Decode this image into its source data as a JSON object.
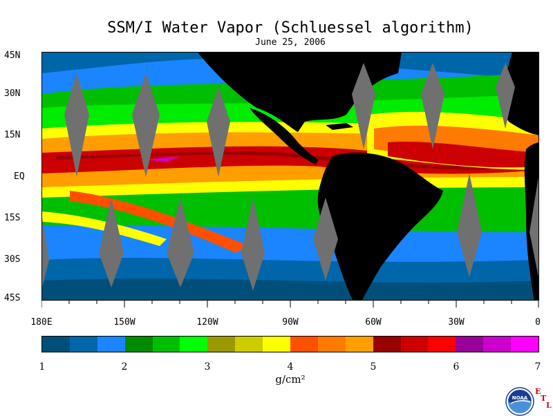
{
  "title": "SSM/I Water Vapor (Schluessel algorithm)",
  "subtitle": "June 25, 2006",
  "lat_labels": [
    "45N",
    "30N",
    "15N",
    "EQ",
    "15S",
    "30S",
    "45S"
  ],
  "lon_labels": [
    "180E",
    "150W",
    "120W",
    "90W",
    "60W",
    "30W",
    "0"
  ],
  "colorbar": {
    "colors": [
      "#004f7a",
      "#0066aa",
      "#1a85ff",
      "#008a00",
      "#00bf00",
      "#00ff00",
      "#9a9a00",
      "#cccc00",
      "#ffff00",
      "#ff5000",
      "#ff7a00",
      "#ff9e00",
      "#990000",
      "#cc0000",
      "#ff0000",
      "#990099",
      "#cc00cc",
      "#ff00ff"
    ],
    "labels": [
      "1",
      "2",
      "3",
      "4",
      "5",
      "6",
      "7"
    ],
    "units": "g/cm²"
  },
  "logo": {
    "icon": "noaa-logo",
    "mark_letters": [
      "E",
      "T",
      "L"
    ]
  }
}
